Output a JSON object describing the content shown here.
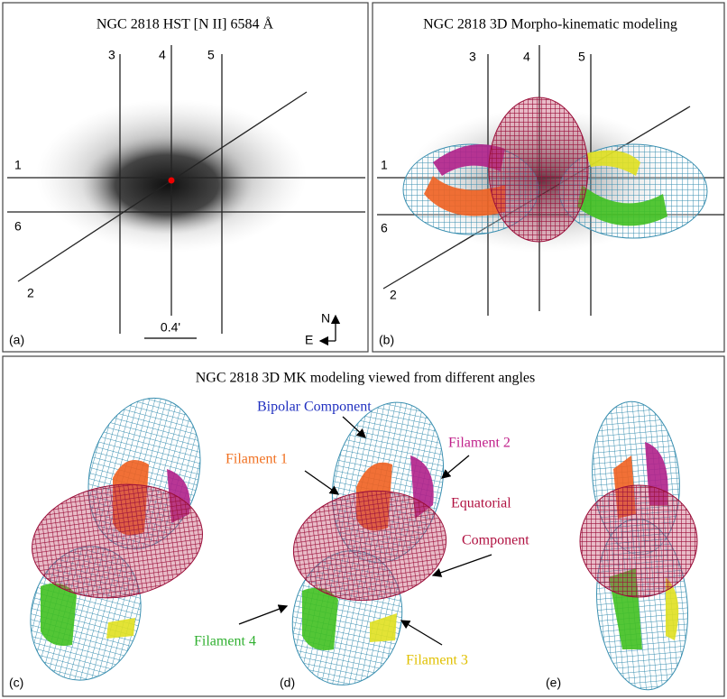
{
  "panels": [
    {
      "label": "(a)",
      "title": "NGC 2818  HST  [N II] 6584 Å",
      "slits": [
        "3",
        "4",
        "5",
        "1",
        "6",
        "2"
      ],
      "scale_bar": "0.4'",
      "compass": {
        "north": "N",
        "east": "E"
      }
    },
    {
      "label": "(b)",
      "title": "NGC 2818  3D Morpho-kinematic modeling",
      "slits": [
        "3",
        "4",
        "5",
        "1",
        "6",
        "2"
      ]
    }
  ],
  "bottom": {
    "title": "NGC 2818  3D MK modeling viewed from different angles",
    "annotations": [
      "Bipolar Component",
      "Filament 2",
      "Filament 1",
      "Equatorial",
      "Component",
      "Filament 4",
      "Filament 3"
    ],
    "panel_labels": [
      "(c)",
      "(d)",
      "(e)"
    ]
  }
}
